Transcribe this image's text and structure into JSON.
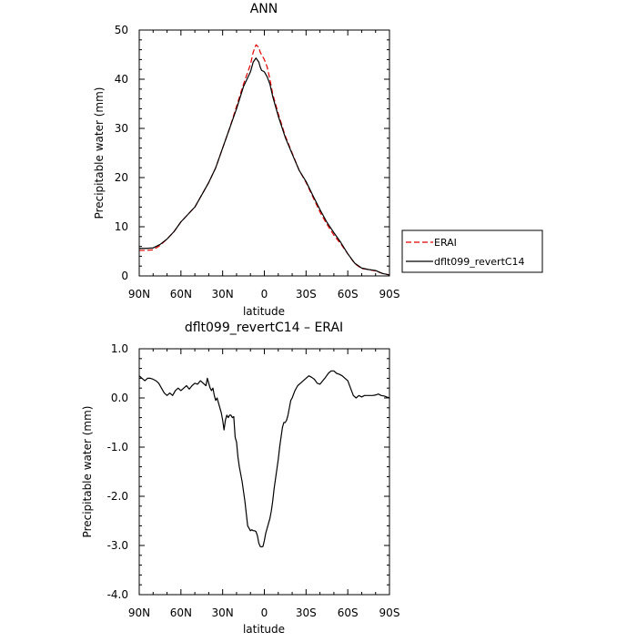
{
  "chart_data": [
    {
      "type": "line",
      "title": "ANN",
      "xlabel": "latitude",
      "ylabel": "Precipitable water (mm)",
      "xlim": [
        90,
        -90
      ],
      "ylim": [
        0,
        50
      ],
      "x_ticks": [
        {
          "value": 90,
          "label": "90N"
        },
        {
          "value": 60,
          "label": "60N"
        },
        {
          "value": 30,
          "label": "30N"
        },
        {
          "value": 0,
          "label": "0"
        },
        {
          "value": -30,
          "label": "30S"
        },
        {
          "value": -60,
          "label": "60S"
        },
        {
          "value": -90,
          "label": "90S"
        }
      ],
      "y_ticks": [
        {
          "value": 0,
          "label": "0"
        },
        {
          "value": 10,
          "label": "10"
        },
        {
          "value": 20,
          "label": "20"
        },
        {
          "value": 30,
          "label": "30"
        },
        {
          "value": 40,
          "label": "40"
        },
        {
          "value": 50,
          "label": "50"
        }
      ],
      "legend_position": "right",
      "series": [
        {
          "name": "ERAI",
          "color": "#dd0000",
          "dash": "dashed",
          "x": [
            90,
            85,
            80,
            75,
            70,
            65,
            60,
            55,
            50,
            45,
            40,
            35,
            30,
            25,
            20,
            15,
            10,
            8,
            6,
            4,
            3,
            2,
            0,
            -2,
            -4,
            -6,
            -10,
            -15,
            -20,
            -25,
            -30,
            -35,
            -40,
            -45,
            -50,
            -55,
            -60,
            -65,
            -70,
            -75,
            -80,
            -85,
            -90
          ],
          "y": [
            5.2,
            5.2,
            5.3,
            6.2,
            7.5,
            9.0,
            11.0,
            12.5,
            14.0,
            16.5,
            19.0,
            22.0,
            26.0,
            30.0,
            34.5,
            39.0,
            43.0,
            45.5,
            47.0,
            46.5,
            45.5,
            45.0,
            44.0,
            42.5,
            40.0,
            37.0,
            33.0,
            28.5,
            25.0,
            21.5,
            19.0,
            16.0,
            13.0,
            10.5,
            8.3,
            6.5,
            4.5,
            2.5,
            1.5,
            1.3,
            1.0,
            0.5,
            0.2
          ]
        },
        {
          "name": "dflt099_revertC14",
          "color": "#000000",
          "dash": "solid",
          "x": [
            90,
            85,
            80,
            75,
            70,
            65,
            60,
            55,
            50,
            45,
            40,
            35,
            30,
            25,
            20,
            15,
            10,
            8,
            6,
            4,
            3,
            2,
            0,
            -2,
            -4,
            -6,
            -10,
            -15,
            -20,
            -25,
            -30,
            -35,
            -40,
            -45,
            -50,
            -55,
            -60,
            -65,
            -70,
            -75,
            -80,
            -85,
            -90
          ],
          "y": [
            5.6,
            5.6,
            5.7,
            6.4,
            7.5,
            9.0,
            11.0,
            12.5,
            14.0,
            16.5,
            19.0,
            22.0,
            26.0,
            30.0,
            34.0,
            38.5,
            41.5,
            43.5,
            44.3,
            43.5,
            42.5,
            41.8,
            41.5,
            40.5,
            39.0,
            36.5,
            32.5,
            28.2,
            24.8,
            21.5,
            19.2,
            16.3,
            13.5,
            10.9,
            8.8,
            6.8,
            4.5,
            2.6,
            1.6,
            1.3,
            1.1,
            0.5,
            0.2
          ]
        }
      ]
    },
    {
      "type": "line",
      "title": "dflt099_revertC14 – ERAI",
      "xlabel": "latitude",
      "ylabel": "Precipitable water (mm)",
      "xlim": [
        90,
        -90
      ],
      "ylim": [
        -4.0,
        1.0
      ],
      "x_ticks": [
        {
          "value": 90,
          "label": "90N"
        },
        {
          "value": 60,
          "label": "60N"
        },
        {
          "value": 30,
          "label": "30N"
        },
        {
          "value": 0,
          "label": "0"
        },
        {
          "value": -30,
          "label": "30S"
        },
        {
          "value": -60,
          "label": "60S"
        },
        {
          "value": -90,
          "label": "90S"
        }
      ],
      "y_ticks": [
        {
          "value": 1.0,
          "label": "1.0"
        },
        {
          "value": 0.0,
          "label": "0.0"
        },
        {
          "value": -1.0,
          "label": "-1.0"
        },
        {
          "value": -2.0,
          "label": "-2.0"
        },
        {
          "value": -3.0,
          "label": "-3.0"
        },
        {
          "value": -4.0,
          "label": "-4.0"
        }
      ],
      "series": [
        {
          "color": "#000000",
          "dash": "solid",
          "x": [
            90,
            88,
            86,
            84,
            82,
            80,
            78,
            76,
            74,
            72,
            70,
            68,
            66,
            64,
            62,
            60,
            58,
            56,
            54,
            52,
            50,
            48,
            46,
            44,
            42,
            41,
            40,
            39,
            38,
            37,
            36,
            35,
            34,
            33,
            32,
            31,
            30,
            29,
            28,
            27,
            26,
            25,
            24,
            23,
            22,
            21,
            20,
            19,
            18,
            17,
            16,
            15,
            14,
            13,
            12,
            11,
            10,
            9,
            8,
            7,
            6,
            5,
            4,
            3,
            2,
            1,
            0,
            -1,
            -2,
            -3,
            -4,
            -5,
            -6,
            -7,
            -8,
            -9,
            -10,
            -11,
            -12,
            -13,
            -14,
            -15,
            -16,
            -17,
            -18,
            -19,
            -20,
            -22,
            -24,
            -26,
            -28,
            -30,
            -32,
            -34,
            -36,
            -38,
            -40,
            -42,
            -44,
            -46,
            -48,
            -50,
            -52,
            -54,
            -56,
            -58,
            -60,
            -62,
            -64,
            -66,
            -68,
            -70,
            -72,
            -74,
            -76,
            -78,
            -80,
            -82,
            -84,
            -86,
            -88,
            -90
          ],
          "y": [
            0.45,
            0.4,
            0.35,
            0.4,
            0.4,
            0.38,
            0.35,
            0.3,
            0.2,
            0.1,
            0.05,
            0.1,
            0.05,
            0.15,
            0.2,
            0.15,
            0.2,
            0.25,
            0.18,
            0.25,
            0.3,
            0.28,
            0.35,
            0.3,
            0.25,
            0.4,
            0.3,
            0.2,
            0.15,
            0.2,
            0.05,
            -0.05,
            0.0,
            -0.1,
            -0.2,
            -0.3,
            -0.45,
            -0.65,
            -0.45,
            -0.35,
            -0.4,
            -0.35,
            -0.35,
            -0.4,
            -0.38,
            -0.8,
            -0.9,
            -1.2,
            -1.4,
            -1.55,
            -1.7,
            -1.9,
            -2.1,
            -2.35,
            -2.6,
            -2.65,
            -2.7,
            -2.68,
            -2.7,
            -2.7,
            -2.72,
            -2.8,
            -2.95,
            -3.02,
            -3.03,
            -3.02,
            -2.9,
            -2.75,
            -2.65,
            -2.55,
            -2.45,
            -2.3,
            -2.1,
            -1.85,
            -1.65,
            -1.45,
            -1.25,
            -1.0,
            -0.8,
            -0.6,
            -0.5,
            -0.5,
            -0.45,
            -0.35,
            -0.2,
            -0.05,
            0.0,
            0.15,
            0.25,
            0.3,
            0.35,
            0.4,
            0.45,
            0.42,
            0.38,
            0.3,
            0.28,
            0.35,
            0.42,
            0.5,
            0.55,
            0.55,
            0.5,
            0.48,
            0.45,
            0.4,
            0.35,
            0.2,
            0.05,
            0.0,
            0.05,
            0.02,
            0.05,
            0.05,
            0.05,
            0.05,
            0.06,
            0.08,
            0.05,
            0.04,
            0.02,
            0.0
          ]
        }
      ]
    }
  ]
}
